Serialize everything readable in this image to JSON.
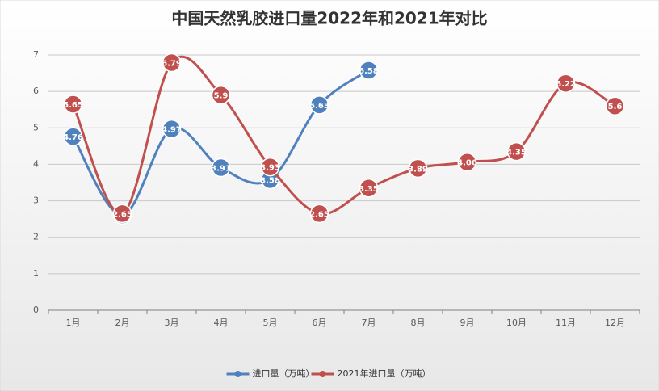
{
  "chart_data": {
    "type": "line",
    "title": "中国天然乳胶进口量2022年和2021年对比",
    "categories": [
      "1月",
      "2月",
      "3月",
      "4月",
      "5月",
      "6月",
      "7月",
      "8月",
      "9月",
      "10月",
      "11月",
      "12月"
    ],
    "series": [
      {
        "name": "进口量（万吨）",
        "color": "#4f81bd",
        "values": [
          4.76,
          2.61,
          4.97,
          3.91,
          3.58,
          5.63,
          6.58,
          null,
          null,
          null,
          null,
          null
        ]
      },
      {
        "name": "2021年进口量（万吨）",
        "color": "#c0504d",
        "values": [
          5.65,
          2.65,
          6.79,
          5.9,
          3.93,
          2.65,
          3.35,
          3.89,
          4.06,
          4.35,
          6.22,
          5.6
        ]
      }
    ],
    "ylim": [
      0,
      7
    ],
    "yticks": [
      0,
      1,
      2,
      3,
      4,
      5,
      6,
      7
    ],
    "grid": true,
    "legend": "bottom",
    "smooth": true
  }
}
